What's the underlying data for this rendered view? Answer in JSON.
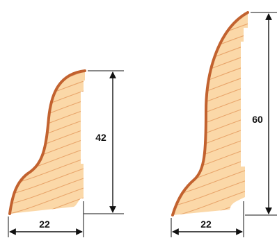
{
  "diagram": {
    "colors": {
      "wood_fill": "#fbd8a8",
      "wood_grain": "#e8a56b",
      "wood_edge": "#c2622f",
      "line": "#111111",
      "background": "#ffffff"
    },
    "profiles": [
      {
        "id": "profile-small",
        "height_label": "42",
        "width_label": "22"
      },
      {
        "id": "profile-large",
        "height_label": "60",
        "width_label": "22"
      }
    ]
  }
}
